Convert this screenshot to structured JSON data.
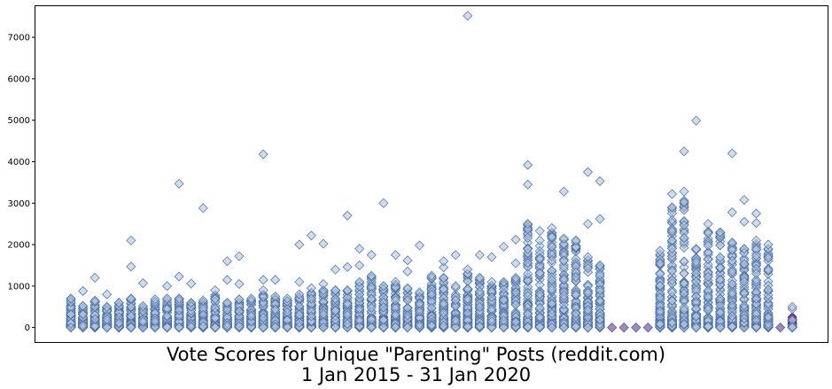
{
  "chart_data": {
    "type": "scatter",
    "marker": "diamond",
    "title": "",
    "xlabel_lines": [
      "Vote Scores for Unique \"Parenting\" Posts (reddit.com)",
      "1 Jan 2015 - 31 Jan 2020"
    ],
    "ylabel": "",
    "ylim": [
      -350,
      7750
    ],
    "yticks": [
      0,
      1000,
      2000,
      3000,
      4000,
      5000,
      6000,
      7000
    ],
    "xticks_visible": false,
    "grid": false,
    "legend": "none",
    "colors": {
      "marker_fill": "#b0c4de",
      "marker_edge": "#4a6fa5",
      "dense_core": "#8b1a8b"
    },
    "columns": [
      {
        "idx": 0,
        "max": 700,
        "count": 60,
        "outliers": []
      },
      {
        "idx": 1,
        "max": 520,
        "count": 60,
        "outliers": [
          880
        ]
      },
      {
        "idx": 2,
        "max": 650,
        "count": 60,
        "outliers": [
          1200
        ]
      },
      {
        "idx": 3,
        "max": 500,
        "count": 60,
        "outliers": [
          800
        ]
      },
      {
        "idx": 4,
        "max": 600,
        "count": 60,
        "outliers": []
      },
      {
        "idx": 5,
        "max": 700,
        "count": 60,
        "outliers": [
          1470,
          2100
        ]
      },
      {
        "idx": 6,
        "max": 520,
        "count": 60,
        "outliers": [
          1070
        ]
      },
      {
        "idx": 7,
        "max": 680,
        "count": 60,
        "outliers": []
      },
      {
        "idx": 8,
        "max": 700,
        "count": 60,
        "outliers": [
          1000
        ]
      },
      {
        "idx": 9,
        "max": 700,
        "count": 60,
        "outliers": [
          1230,
          3470
        ]
      },
      {
        "idx": 10,
        "max": 600,
        "count": 60,
        "outliers": [
          1060
        ]
      },
      {
        "idx": 11,
        "max": 650,
        "count": 60,
        "outliers": [
          2880
        ]
      },
      {
        "idx": 12,
        "max": 900,
        "count": 60,
        "outliers": []
      },
      {
        "idx": 13,
        "max": 600,
        "count": 60,
        "outliers": [
          1150,
          1600
        ]
      },
      {
        "idx": 14,
        "max": 680,
        "count": 60,
        "outliers": [
          1050,
          1720
        ]
      },
      {
        "idx": 15,
        "max": 700,
        "count": 60,
        "outliers": []
      },
      {
        "idx": 16,
        "max": 900,
        "count": 70,
        "outliers": [
          1150,
          4180
        ]
      },
      {
        "idx": 17,
        "max": 750,
        "count": 60,
        "outliers": [
          1150
        ]
      },
      {
        "idx": 18,
        "max": 700,
        "count": 60,
        "outliers": []
      },
      {
        "idx": 19,
        "max": 800,
        "count": 60,
        "outliers": [
          1100,
          2000
        ]
      },
      {
        "idx": 20,
        "max": 950,
        "count": 60,
        "outliers": [
          2220
        ]
      },
      {
        "idx": 21,
        "max": 900,
        "count": 60,
        "outliers": [
          1050,
          2020
        ]
      },
      {
        "idx": 22,
        "max": 900,
        "count": 60,
        "outliers": [
          1400
        ]
      },
      {
        "idx": 23,
        "max": 900,
        "count": 60,
        "outliers": [
          1460,
          2700
        ]
      },
      {
        "idx": 24,
        "max": 1100,
        "count": 70,
        "outliers": [
          1500,
          1900
        ]
      },
      {
        "idx": 25,
        "max": 1250,
        "count": 70,
        "outliers": [
          1750
        ]
      },
      {
        "idx": 26,
        "max": 1000,
        "count": 60,
        "outliers": [
          3000
        ]
      },
      {
        "idx": 27,
        "max": 1100,
        "count": 70,
        "outliers": [
          1750
        ]
      },
      {
        "idx": 28,
        "max": 950,
        "count": 60,
        "outliers": [
          1350,
          1620
        ]
      },
      {
        "idx": 29,
        "max": 850,
        "count": 60,
        "outliers": [
          1980
        ]
      },
      {
        "idx": 30,
        "max": 1250,
        "count": 70,
        "outliers": []
      },
      {
        "idx": 31,
        "max": 1200,
        "count": 70,
        "outliers": [
          1450,
          1600
        ]
      },
      {
        "idx": 32,
        "max": 1000,
        "count": 60,
        "outliers": [
          1750
        ]
      },
      {
        "idx": 33,
        "max": 1300,
        "count": 70,
        "outliers": [
          1400,
          7520
        ]
      },
      {
        "idx": 34,
        "max": 1200,
        "count": 70,
        "outliers": [
          1750
        ]
      },
      {
        "idx": 35,
        "max": 1100,
        "count": 70,
        "outliers": [
          1700
        ]
      },
      {
        "idx": 36,
        "max": 1100,
        "count": 70,
        "outliers": [
          1950
        ]
      },
      {
        "idx": 37,
        "max": 1200,
        "count": 70,
        "outliers": [
          1550,
          2120
        ]
      },
      {
        "idx": 38,
        "max": 2500,
        "count": 80,
        "outliers": [
          3450,
          3920
        ]
      },
      {
        "idx": 39,
        "max": 2100,
        "count": 80,
        "outliers": [
          2330
        ]
      },
      {
        "idx": 40,
        "max": 2400,
        "count": 80,
        "outliers": []
      },
      {
        "idx": 41,
        "max": 2150,
        "count": 80,
        "outliers": [
          3280
        ]
      },
      {
        "idx": 42,
        "max": 2100,
        "count": 80,
        "outliers": []
      },
      {
        "idx": 43,
        "max": 1700,
        "count": 80,
        "outliers": [
          2500,
          3750
        ]
      },
      {
        "idx": 44,
        "max": 1500,
        "count": 80,
        "outliers": [
          2620,
          3530
        ]
      },
      {
        "idx": 45,
        "max": 0,
        "count": 1,
        "outliers": []
      },
      {
        "idx": 46,
        "max": 0,
        "count": 1,
        "outliers": []
      },
      {
        "idx": 47,
        "max": 0,
        "count": 1,
        "outliers": []
      },
      {
        "idx": 48,
        "max": 0,
        "count": 1,
        "outliers": []
      },
      {
        "idx": 49,
        "max": 1850,
        "count": 80,
        "outliers": []
      },
      {
        "idx": 50,
        "max": 2900,
        "count": 90,
        "outliers": [
          3220
        ]
      },
      {
        "idx": 51,
        "max": 3280,
        "count": 90,
        "outliers": [
          4250
        ]
      },
      {
        "idx": 52,
        "max": 1900,
        "count": 80,
        "outliers": [
          4990
        ]
      },
      {
        "idx": 53,
        "max": 2500,
        "count": 80,
        "outliers": []
      },
      {
        "idx": 54,
        "max": 2300,
        "count": 80,
        "outliers": []
      },
      {
        "idx": 55,
        "max": 2050,
        "count": 80,
        "outliers": [
          2780,
          4200
        ]
      },
      {
        "idx": 56,
        "max": 1900,
        "count": 80,
        "outliers": [
          2550,
          3080
        ]
      },
      {
        "idx": 57,
        "max": 2100,
        "count": 80,
        "outliers": [
          2520,
          2750
        ]
      },
      {
        "idx": 58,
        "max": 2000,
        "count": 70,
        "outliers": []
      },
      {
        "idx": 59,
        "max": 0,
        "count": 1,
        "outliers": []
      },
      {
        "idx": 60,
        "max": 500,
        "count": 8,
        "outliers": []
      }
    ]
  }
}
